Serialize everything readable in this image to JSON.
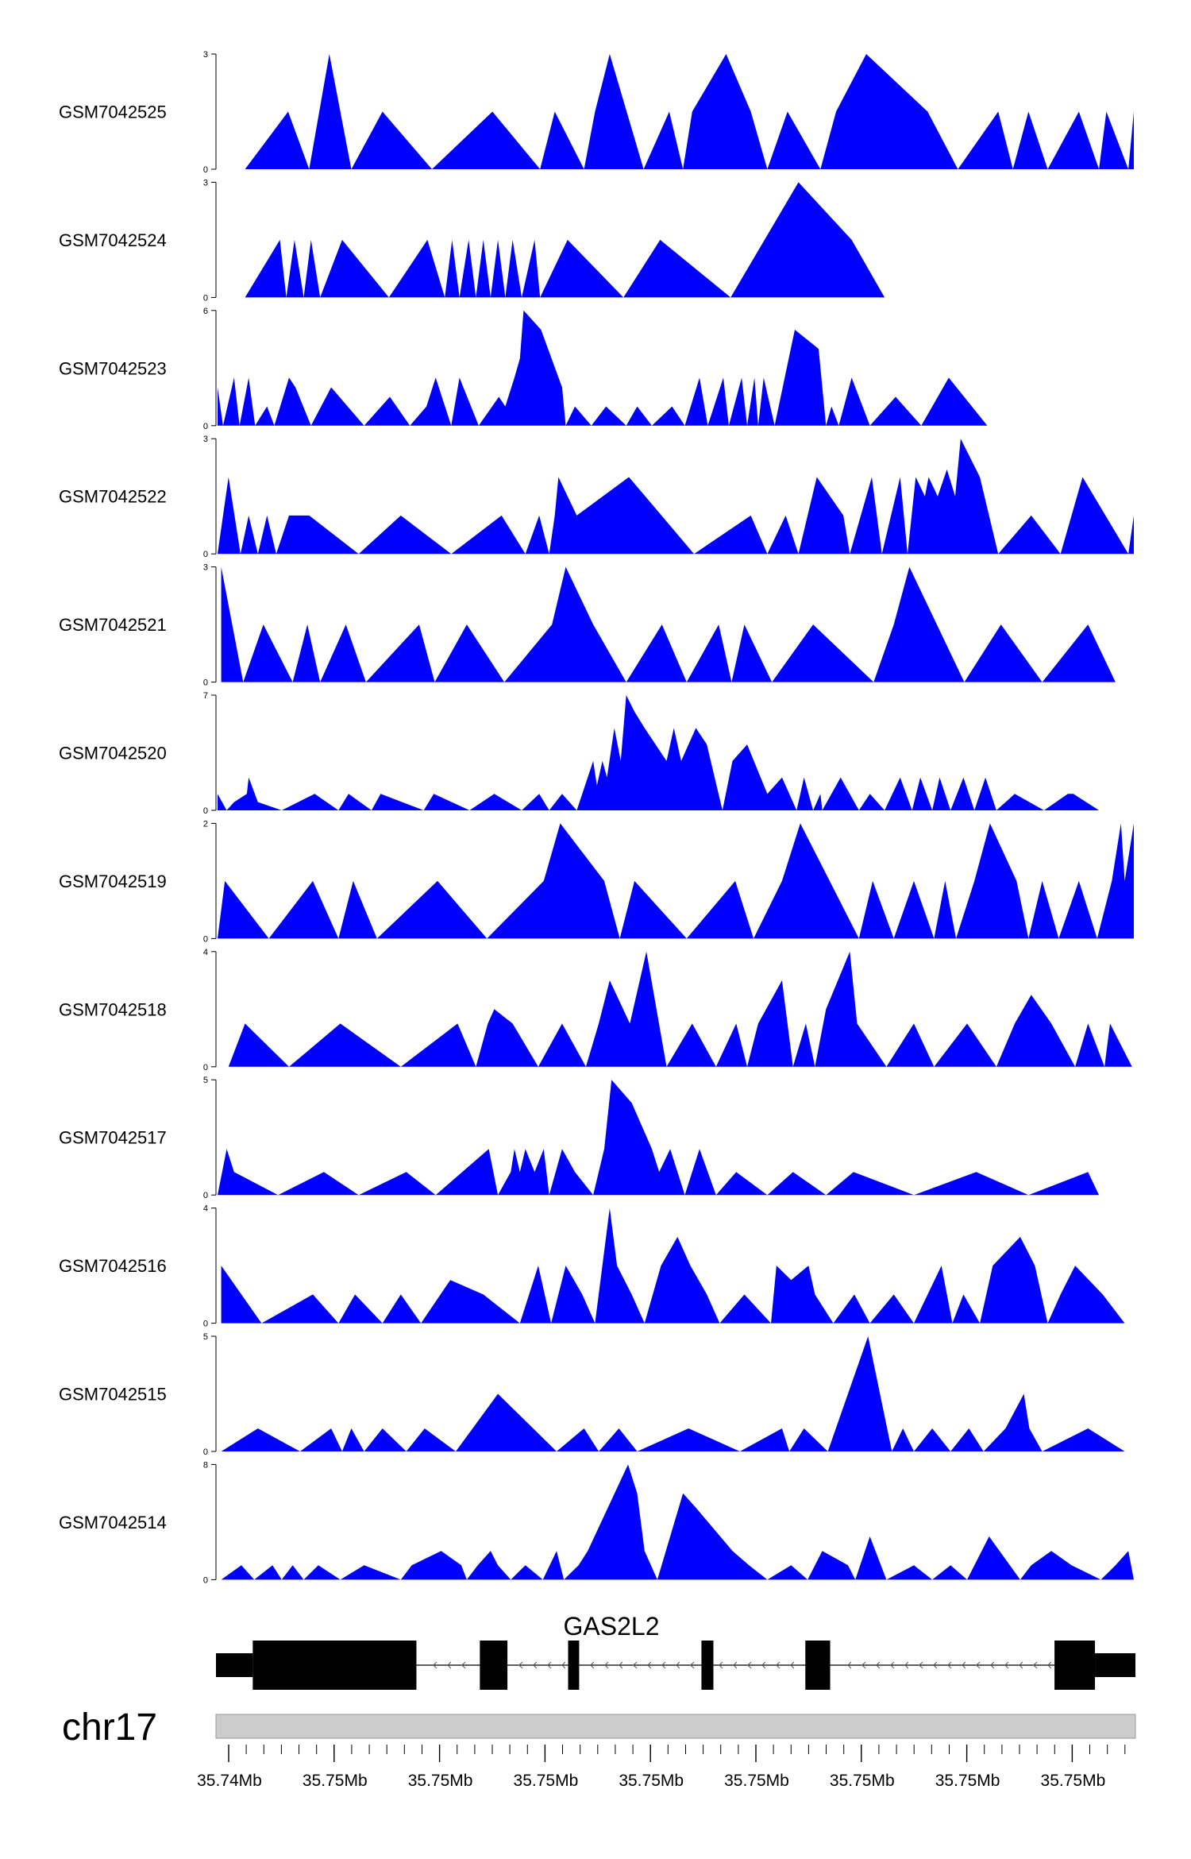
{
  "colors": {
    "track_fill": "#0000ff",
    "gene": "#000000",
    "ideogram": "#cccccc",
    "axis": "#000000"
  },
  "chart_data": {
    "type": "area",
    "x_range": [
      0,
      1
    ],
    "tracks": [
      {
        "name": "GSM7042525",
        "ymax": 3,
        "x": [
          0.03,
          0.077,
          0.1,
          0.122,
          0.146,
          0.18,
          0.234,
          0.3,
          0.352,
          0.368,
          0.4,
          0.412,
          0.428,
          0.465,
          0.493,
          0.508,
          0.518,
          0.555,
          0.582,
          0.6,
          0.622,
          0.658,
          0.675,
          0.708,
          0.775,
          0.808,
          0.852,
          0.868,
          0.885,
          0.906,
          0.94,
          0.962,
          0.97,
          0.994,
          1.0
        ],
        "y": [
          0,
          1.5,
          0,
          3,
          0,
          1.5,
          0,
          1.5,
          0,
          1.5,
          0,
          1.5,
          3,
          0,
          1.5,
          0,
          1.5,
          3,
          1.5,
          0,
          1.5,
          0,
          1.5,
          3,
          1.5,
          0,
          1.5,
          0,
          1.5,
          0,
          1.5,
          0,
          1.5,
          0,
          1.5
        ]
      },
      {
        "name": "GSM7042524",
        "ymax": 3,
        "x": [
          0.03,
          0.068,
          0.075,
          0.084,
          0.094,
          0.102,
          0.112,
          0.136,
          0.187,
          0.229,
          0.248,
          0.256,
          0.264,
          0.274,
          0.282,
          0.29,
          0.298,
          0.306,
          0.314,
          0.322,
          0.332,
          0.346,
          0.352,
          0.382,
          0.443,
          0.483,
          0.56,
          0.634,
          0.692,
          0.728,
          0.822
        ],
        "y": [
          0,
          1.5,
          0,
          1.5,
          0,
          1.5,
          0,
          1.5,
          0,
          1.5,
          0,
          1.5,
          0,
          1.5,
          0,
          1.5,
          0,
          1.5,
          0,
          1.5,
          0,
          1.5,
          0,
          1.5,
          0,
          1.5,
          0,
          3,
          1.5,
          0,
          0
        ]
      },
      {
        "name": "GSM7042523",
        "ymax": 6,
        "x": [
          0,
          0.006,
          0.018,
          0.024,
          0.034,
          0.041,
          0.054,
          0.062,
          0.078,
          0.085,
          0.102,
          0.124,
          0.16,
          0.188,
          0.21,
          0.228,
          0.238,
          0.255,
          0.264,
          0.285,
          0.307,
          0.314,
          0.324,
          0.33,
          0.334,
          0.353,
          0.376,
          0.38,
          0.39,
          0.408,
          0.424,
          0.446,
          0.458,
          0.474,
          0.496,
          0.51,
          0.526,
          0.535,
          0.552,
          0.558,
          0.572,
          0.578,
          0.586,
          0.59,
          0.596,
          0.608,
          0.63,
          0.656,
          0.664,
          0.67,
          0.678,
          0.692,
          0.712,
          0.74,
          0.768,
          0.798,
          0.84,
          0.886
        ],
        "y": [
          2,
          0,
          2.5,
          0,
          2.5,
          0,
          1,
          0,
          2.5,
          2,
          0,
          2,
          0,
          1.5,
          0,
          1,
          2.5,
          0,
          2.5,
          0,
          1.5,
          1,
          2.5,
          3.5,
          6,
          5,
          2,
          0,
          1,
          0,
          1,
          0,
          1,
          0,
          1,
          0,
          2.5,
          0,
          2.5,
          0,
          2.5,
          0,
          2.5,
          0,
          2.5,
          0,
          5,
          4,
          0,
          1,
          0,
          2.5,
          0,
          1.5,
          0,
          2.5,
          0,
          0
        ]
      },
      {
        "name": "GSM7042522",
        "ymax": 3,
        "x": [
          0,
          0.006,
          0.012,
          0.025,
          0.034,
          0.044,
          0.054,
          0.064,
          0.078,
          0.1,
          0.154,
          0.2,
          0.255,
          0.31,
          0.336,
          0.351,
          0.362,
          0.368,
          0.372,
          0.392,
          0.449,
          0.52,
          0.582,
          0.6,
          0.62,
          0.634,
          0.654,
          0.683,
          0.69,
          0.714,
          0.725,
          0.735,
          0.745,
          0.753,
          0.762,
          0.772,
          0.776,
          0.786,
          0.796,
          0.805,
          0.811,
          0.832,
          0.852,
          0.888,
          0.92,
          0.944,
          0.994,
          1.0
        ],
        "y": [
          0,
          1,
          2,
          0,
          1,
          0,
          1,
          0,
          1,
          1,
          0,
          1,
          0,
          1,
          0,
          1,
          0,
          1,
          2,
          1,
          2,
          0,
          1,
          0,
          1,
          0,
          2,
          1,
          0,
          2,
          0,
          1,
          2,
          0,
          2,
          1.5,
          2,
          1.5,
          2.2,
          1.5,
          3,
          2,
          0,
          1,
          0,
          2,
          0,
          1
        ]
      },
      {
        "name": "GSM7042521",
        "ymax": 3,
        "x": [
          0.004,
          0.028,
          0.05,
          0.082,
          0.098,
          0.112,
          0.14,
          0.162,
          0.22,
          0.237,
          0.272,
          0.313,
          0.365,
          0.38,
          0.41,
          0.446,
          0.485,
          0.512,
          0.547,
          0.561,
          0.575,
          0.605,
          0.65,
          0.716,
          0.738,
          0.755,
          0.785,
          0.815,
          0.855,
          0.9,
          0.95,
          0.98,
          0.984,
          0.988
        ],
        "y": [
          3,
          0,
          1.5,
          0,
          1.5,
          0,
          1.5,
          0,
          1.5,
          0,
          1.5,
          0,
          1.5,
          3,
          1.5,
          0,
          1.5,
          0,
          1.5,
          0,
          1.5,
          0,
          1.5,
          0,
          1.5,
          3,
          1.5,
          0,
          1.5,
          0,
          1.5,
          0,
          0,
          0
        ]
      },
      {
        "name": "GSM7042520",
        "ymax": 7,
        "x": [
          0,
          0.01,
          0.018,
          0.032,
          0.034,
          0.044,
          0.07,
          0.106,
          0.132,
          0.143,
          0.168,
          0.178,
          0.225,
          0.236,
          0.275,
          0.302,
          0.332,
          0.351,
          0.362,
          0.376,
          0.392,
          0.404,
          0.41,
          0.414,
          0.42,
          0.425,
          0.433,
          0.44,
          0.446,
          0.455,
          0.466,
          0.49,
          0.498,
          0.506,
          0.522,
          0.534,
          0.551,
          0.562,
          0.578,
          0.6,
          0.616,
          0.632,
          0.64,
          0.65,
          0.658,
          0.66,
          0.68,
          0.7,
          0.712,
          0.728,
          0.745,
          0.758,
          0.767,
          0.78,
          0.788,
          0.8,
          0.814,
          0.826,
          0.838,
          0.85,
          0.87,
          0.902,
          0.928,
          0.934,
          0.962
        ],
        "y": [
          1,
          0,
          0.5,
          1,
          2,
          0.5,
          0,
          1,
          0,
          1,
          0,
          1,
          0,
          1,
          0,
          1,
          0,
          1,
          0,
          1,
          0,
          2,
          3,
          1.5,
          3,
          2,
          5,
          3,
          7,
          6,
          5,
          3,
          5,
          3,
          5,
          4,
          0,
          3,
          4,
          1,
          2,
          0,
          2,
          0,
          1,
          0,
          2,
          0,
          1,
          0,
          2,
          0,
          2,
          0,
          2,
          0,
          2,
          0,
          2,
          0,
          1,
          0,
          1,
          1,
          0
        ]
      },
      {
        "name": "GSM7042519",
        "ymax": 2,
        "x": [
          0.0,
          0.008,
          0.056,
          0.104,
          0.132,
          0.148,
          0.174,
          0.24,
          0.294,
          0.356,
          0.374,
          0.422,
          0.439,
          0.455,
          0.512,
          0.565,
          0.585,
          0.616,
          0.636,
          0.668,
          0.7,
          0.715,
          0.738,
          0.76,
          0.782,
          0.794,
          0.806,
          0.826,
          0.843,
          0.872,
          0.885,
          0.9,
          0.918,
          0.94,
          0.96,
          0.976,
          0.986,
          0.99,
          1.0
        ],
        "y": [
          0,
          1,
          0,
          1,
          0,
          1,
          0,
          1,
          0,
          1,
          2,
          1,
          0,
          1,
          0,
          1,
          0,
          1,
          2,
          1,
          0,
          1,
          0,
          1,
          0,
          1,
          0,
          1,
          2,
          1,
          0,
          1,
          0,
          1,
          0,
          1,
          2,
          1,
          2
        ]
      },
      {
        "name": "GSM7042518",
        "ymax": 4,
        "x": [
          0.012,
          0.03,
          0.078,
          0.134,
          0.2,
          0.262,
          0.282,
          0.295,
          0.302,
          0.322,
          0.35,
          0.376,
          0.402,
          0.416,
          0.428,
          0.45,
          0.468,
          0.49,
          0.518,
          0.544,
          0.566,
          0.578,
          0.59,
          0.616,
          0.628,
          0.642,
          0.652,
          0.664,
          0.69,
          0.698,
          0.73,
          0.76,
          0.782,
          0.818,
          0.85,
          0.87,
          0.888,
          0.91,
          0.936,
          0.95,
          0.968,
          0.974,
          0.998
        ],
        "y": [
          0,
          1.5,
          0,
          1.5,
          0,
          1.5,
          0,
          1.5,
          2,
          1.5,
          0,
          1.5,
          0,
          1.5,
          3,
          1.5,
          4,
          0,
          1.5,
          0,
          1.5,
          0,
          1.5,
          3,
          0,
          1.5,
          0,
          2,
          4,
          1.5,
          0,
          1.5,
          0,
          1.5,
          0,
          1.5,
          2.5,
          1.5,
          0,
          1.5,
          0,
          1.5,
          0
        ]
      },
      {
        "name": "GSM7042517",
        "ymax": 5,
        "x": [
          0.0,
          0.01,
          0.018,
          0.066,
          0.116,
          0.154,
          0.206,
          0.238,
          0.296,
          0.306,
          0.32,
          0.324,
          0.33,
          0.336,
          0.346,
          0.356,
          0.362,
          0.376,
          0.39,
          0.41,
          0.422,
          0.43,
          0.452,
          0.474,
          0.482,
          0.494,
          0.51,
          0.526,
          0.544,
          0.566,
          0.6,
          0.628,
          0.664,
          0.694,
          0.76,
          0.828,
          0.885,
          0.95,
          0.962
        ],
        "y": [
          0,
          2,
          1,
          0,
          1,
          0,
          1,
          0,
          2,
          0,
          1,
          2,
          1,
          2,
          1,
          2,
          0,
          2,
          1,
          0,
          2,
          5,
          4,
          2,
          1,
          2,
          0,
          2,
          0,
          1,
          0,
          1,
          0,
          1,
          0,
          1,
          0,
          1,
          0
        ]
      },
      {
        "name": "GSM7042516",
        "ymax": 4,
        "x": [
          0.004,
          0.048,
          0.104,
          0.132,
          0.15,
          0.18,
          0.2,
          0.222,
          0.254,
          0.29,
          0.33,
          0.35,
          0.364,
          0.38,
          0.398,
          0.412,
          0.428,
          0.436,
          0.452,
          0.466,
          0.484,
          0.502,
          0.516,
          0.534,
          0.548,
          0.575,
          0.604,
          0.61,
          0.626,
          0.645,
          0.652,
          0.672,
          0.695,
          0.712,
          0.738,
          0.76,
          0.79,
          0.802,
          0.814,
          0.832,
          0.846,
          0.876,
          0.892,
          0.906,
          0.92,
          0.936,
          0.966,
          0.99
        ],
        "y": [
          2,
          0,
          1,
          0,
          1,
          0,
          1,
          0,
          1.5,
          1,
          0,
          2,
          0,
          2,
          1,
          0,
          4,
          2,
          1,
          0,
          2,
          3,
          2,
          1,
          0,
          1,
          0,
          2,
          1.5,
          2,
          1,
          0,
          1,
          0,
          1,
          0,
          2,
          0,
          1,
          0,
          2,
          3,
          2,
          0,
          1,
          2,
          1,
          0
        ]
      },
      {
        "name": "GSM7042515",
        "ymax": 5,
        "x": [
          0.004,
          0.044,
          0.09,
          0.124,
          0.136,
          0.146,
          0.16,
          0.18,
          0.206,
          0.226,
          0.26,
          0.306,
          0.37,
          0.4,
          0.416,
          0.438,
          0.458,
          0.514,
          0.57,
          0.616,
          0.624,
          0.64,
          0.666,
          0.71,
          0.736,
          0.748,
          0.76,
          0.78,
          0.8,
          0.82,
          0.836,
          0.86,
          0.88,
          0.886,
          0.9,
          0.95,
          0.99
        ],
        "y": [
          0,
          1,
          0,
          1,
          0,
          1,
          0,
          1,
          0,
          1,
          0,
          2.5,
          0,
          1,
          0,
          1,
          0,
          1,
          0,
          1,
          0,
          1,
          0,
          5,
          0,
          1,
          0,
          1,
          0,
          1,
          0,
          1,
          2.5,
          1,
          0,
          1,
          0
        ]
      },
      {
        "name": "GSM7042514",
        "ymax": 8,
        "x": [
          0.004,
          0.026,
          0.04,
          0.06,
          0.07,
          0.082,
          0.094,
          0.11,
          0.134,
          0.16,
          0.2,
          0.212,
          0.244,
          0.266,
          0.272,
          0.284,
          0.298,
          0.306,
          0.32,
          0.336,
          0.355,
          0.37,
          0.378,
          0.394,
          0.404,
          0.448,
          0.458,
          0.466,
          0.48,
          0.508,
          0.522,
          0.562,
          0.58,
          0.6,
          0.626,
          0.644,
          0.66,
          0.688,
          0.696,
          0.712,
          0.73,
          0.76,
          0.78,
          0.8,
          0.818,
          0.842,
          0.876,
          0.888,
          0.91,
          0.932,
          0.964,
          0.98,
          0.994,
          1.0
        ],
        "y": [
          0,
          1,
          0,
          1,
          0,
          1,
          0,
          1,
          0,
          1,
          0,
          1,
          2,
          1,
          0,
          1,
          2,
          1,
          0,
          1,
          0,
          2,
          0,
          1,
          2,
          8,
          6,
          2,
          0,
          6,
          5,
          2,
          1,
          0,
          1,
          0,
          2,
          1,
          0,
          3,
          0,
          1,
          0,
          1,
          0,
          3,
          0,
          1,
          2,
          1,
          0,
          1,
          2,
          0
        ]
      }
    ]
  },
  "gene": {
    "name": "GAS2L2",
    "utr_blocks": [
      [
        0.0,
        0.04
      ],
      [
        0.956,
        1.0
      ]
    ],
    "exon_blocks": [
      [
        0.04,
        0.218
      ],
      [
        0.287,
        0.317
      ],
      [
        0.383,
        0.395
      ],
      [
        0.528,
        0.541
      ],
      [
        0.641,
        0.668
      ],
      [
        0.912,
        0.956
      ]
    ]
  },
  "genome_axis": {
    "chromosome": "chr17",
    "tick_labels": [
      "35.74Mb",
      "35.75Mb",
      "35.75Mb",
      "35.75Mb",
      "35.75Mb",
      "35.75Mb",
      "35.75Mb",
      "35.75Mb",
      "35.75Mb"
    ]
  }
}
